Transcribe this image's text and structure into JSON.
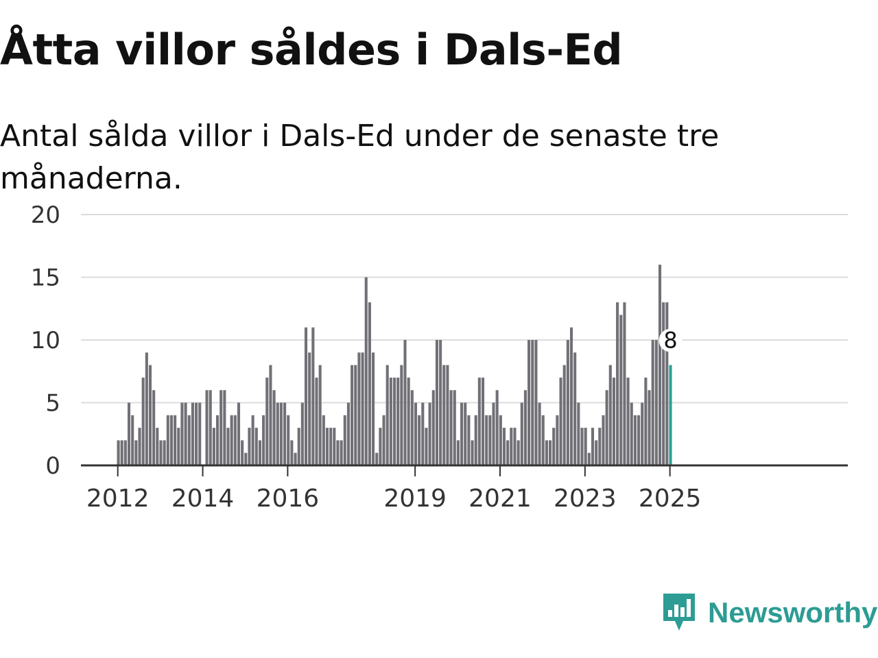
{
  "header": {
    "title": "Åtta villor såldes i Dals-Ed",
    "subtitle": "Antal sålda villor i Dals-Ed under de senaste tre månaderna."
  },
  "brand": {
    "name": "Newsworthy",
    "color": "#2c9c94"
  },
  "colors": {
    "bar": "#717076",
    "highlight": "#2aa198",
    "grid": "#dcdcdc",
    "axis": "#333333"
  },
  "chart_data": {
    "type": "bar",
    "start": "2012-01",
    "ylim": [
      0,
      20
    ],
    "yticks": [
      0,
      5,
      10,
      15,
      20
    ],
    "xtick_labels": [
      "2012",
      "2014",
      "2016",
      "2019",
      "2021",
      "2023",
      "2025"
    ],
    "highlight_label": "8",
    "grid": true,
    "values": [
      2,
      2,
      2,
      5,
      4,
      2,
      3,
      7,
      9,
      8,
      6,
      3,
      2,
      2,
      4,
      4,
      4,
      3,
      5,
      5,
      4,
      5,
      5,
      5,
      0,
      6,
      6,
      3,
      4,
      6,
      6,
      3,
      4,
      4,
      5,
      2,
      1,
      3,
      4,
      3,
      2,
      4,
      7,
      8,
      6,
      5,
      5,
      5,
      4,
      2,
      1,
      3,
      5,
      11,
      9,
      11,
      7,
      8,
      4,
      3,
      3,
      3,
      2,
      2,
      4,
      5,
      8,
      8,
      9,
      9,
      15,
      13,
      9,
      1,
      3,
      4,
      8,
      7,
      7,
      7,
      8,
      10,
      7,
      6,
      5,
      4,
      5,
      3,
      5,
      6,
      10,
      10,
      8,
      8,
      6,
      6,
      2,
      5,
      5,
      4,
      2,
      4,
      7,
      7,
      4,
      4,
      5,
      6,
      4,
      3,
      2,
      3,
      3,
      2,
      5,
      6,
      10,
      10,
      10,
      5,
      4,
      2,
      2,
      3,
      4,
      7,
      8,
      10,
      11,
      9,
      5,
      3,
      3,
      1,
      3,
      2,
      3,
      4,
      6,
      8,
      7,
      13,
      12,
      13,
      7,
      5,
      4,
      4,
      5,
      7,
      6,
      10,
      10,
      16,
      13,
      13,
      8
    ]
  }
}
